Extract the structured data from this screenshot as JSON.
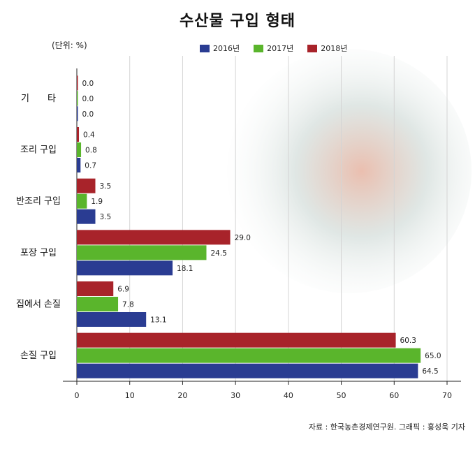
{
  "title": "수산물 구입 형태",
  "unit_label": "(단위: %)",
  "source": "자료 : 한국농촌경제연구원. 그래픽 : 홍성욱 기자",
  "chart_data": {
    "type": "bar",
    "orientation": "horizontal",
    "categories": [
      "기　　타",
      "조리 구입",
      "반조리 구입",
      "포장 구입",
      "집에서 손질",
      "손질 구입"
    ],
    "series": [
      {
        "name": "2016년",
        "color": "#2a3c92",
        "values": [
          0.0,
          0.7,
          3.5,
          18.1,
          13.1,
          64.5
        ],
        "labels": [
          "0.0",
          "0.7",
          "3.5",
          "18.1",
          "13.1",
          "64.5"
        ]
      },
      {
        "name": "2017년",
        "color": "#5ab52c",
        "values": [
          0.0,
          0.8,
          1.9,
          24.5,
          7.8,
          65.0
        ],
        "labels": [
          "0.0",
          "0.8",
          "1.9",
          "24.5",
          "7.8",
          "65.0"
        ]
      },
      {
        "name": "2018년",
        "color": "#a8232a",
        "values": [
          0.0,
          0.4,
          3.5,
          29.0,
          6.9,
          60.3
        ],
        "labels": [
          "0.0",
          "0.4",
          "3.5",
          "29.0",
          "6.9",
          "60.3"
        ]
      }
    ],
    "xlim": [
      0,
      70
    ],
    "xticks": [
      0,
      10,
      20,
      30,
      40,
      50,
      60,
      70
    ],
    "grid": true,
    "legend": "top"
  }
}
